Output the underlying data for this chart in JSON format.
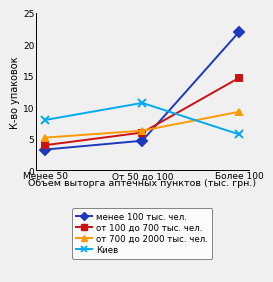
{
  "x_labels": [
    "Менее 50",
    "От 50 до 100",
    "Более 100"
  ],
  "x_positions": [
    0,
    1,
    2
  ],
  "series": [
    {
      "label": "менее 100 тыс. чел.",
      "values": [
        3.3,
        4.7,
        22.0
      ],
      "color": "#1C39BB",
      "marker": "D",
      "marker_size": 5,
      "linewidth": 1.4
    },
    {
      "label": "от 100 до 700 тыс. чел.",
      "values": [
        4.0,
        6.0,
        14.7
      ],
      "color": "#CC1111",
      "marker": "s",
      "marker_size": 5,
      "linewidth": 1.4
    },
    {
      "label": "от 700 до 2000 тыс. чел.",
      "values": [
        5.2,
        6.3,
        9.3
      ],
      "color": "#FF9900",
      "marker": "^",
      "marker_size": 5,
      "linewidth": 1.4
    },
    {
      "label": "Киев",
      "values": [
        8.0,
        10.7,
        5.7
      ],
      "color": "#00AAEE",
      "marker": "x",
      "marker_size": 6,
      "linewidth": 1.4
    }
  ],
  "ylabel": "К-во упаковок",
  "xlabel": "Объем выторга аптечных пунктов (тыс. грн.)",
  "ylim": [
    0,
    25
  ],
  "yticks": [
    0,
    5,
    10,
    15,
    20,
    25
  ],
  "background_color": "#f0f0f0",
  "legend_fontsize": 6.2,
  "axis_label_fontsize": 6.8,
  "tick_fontsize": 6.5,
  "ylabel_fontsize": 7.0
}
